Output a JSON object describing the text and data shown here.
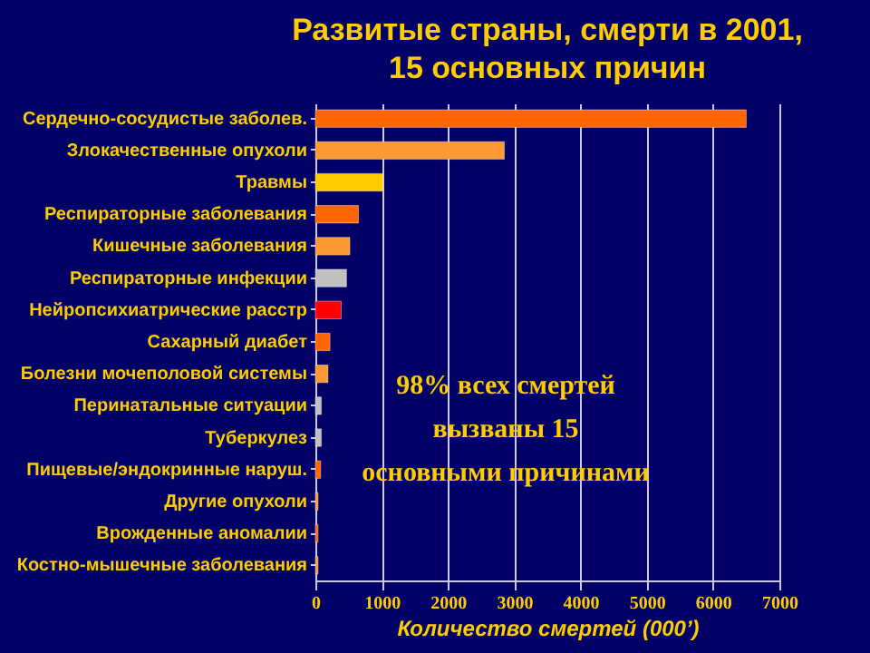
{
  "chart_data": {
    "type": "bar",
    "orientation": "horizontal",
    "title": "Развитые страны, смерти в 2001,\n15 основных причин",
    "xlabel": "Количество смертей (000’)",
    "categories": [
      "Сердечно-сосудистые заболев.",
      "Злокачественные опухоли",
      "Травмы",
      "Респираторные заболевания",
      "Кишечные заболевания",
      "Респираторные инфекции",
      "Нейропсихиатрические расстр",
      "Сахарный диабет",
      "Болезни мочеполовой системы",
      "Перинатальные ситуации",
      "Туберкулез",
      "Пищевые/эндокринные наруш.",
      "Другие опухоли",
      "Врожденные аномалии",
      "Костно-мышечные заболевания"
    ],
    "values": [
      6500,
      2850,
      1020,
      650,
      520,
      470,
      390,
      220,
      190,
      90,
      90,
      80,
      40,
      40,
      40
    ],
    "colors": [
      "#ff6600",
      "#ff9933",
      "#ffcc00",
      "#ff6600",
      "#ff9933",
      "#c0c0c0",
      "#ff0000",
      "#ff6600",
      "#ff9933",
      "#c0c0c0",
      "#c0c0c0",
      "#ff6600",
      "#ff9933",
      "#ff6600",
      "#ff9933"
    ],
    "xlim": [
      0,
      7000
    ],
    "xticks": [
      0,
      1000,
      2000,
      3000,
      4000,
      5000,
      6000,
      7000
    ],
    "grid": "x",
    "annotations": [
      "98% всех смертей\nвызваны 15\nосновными причинами"
    ]
  }
}
